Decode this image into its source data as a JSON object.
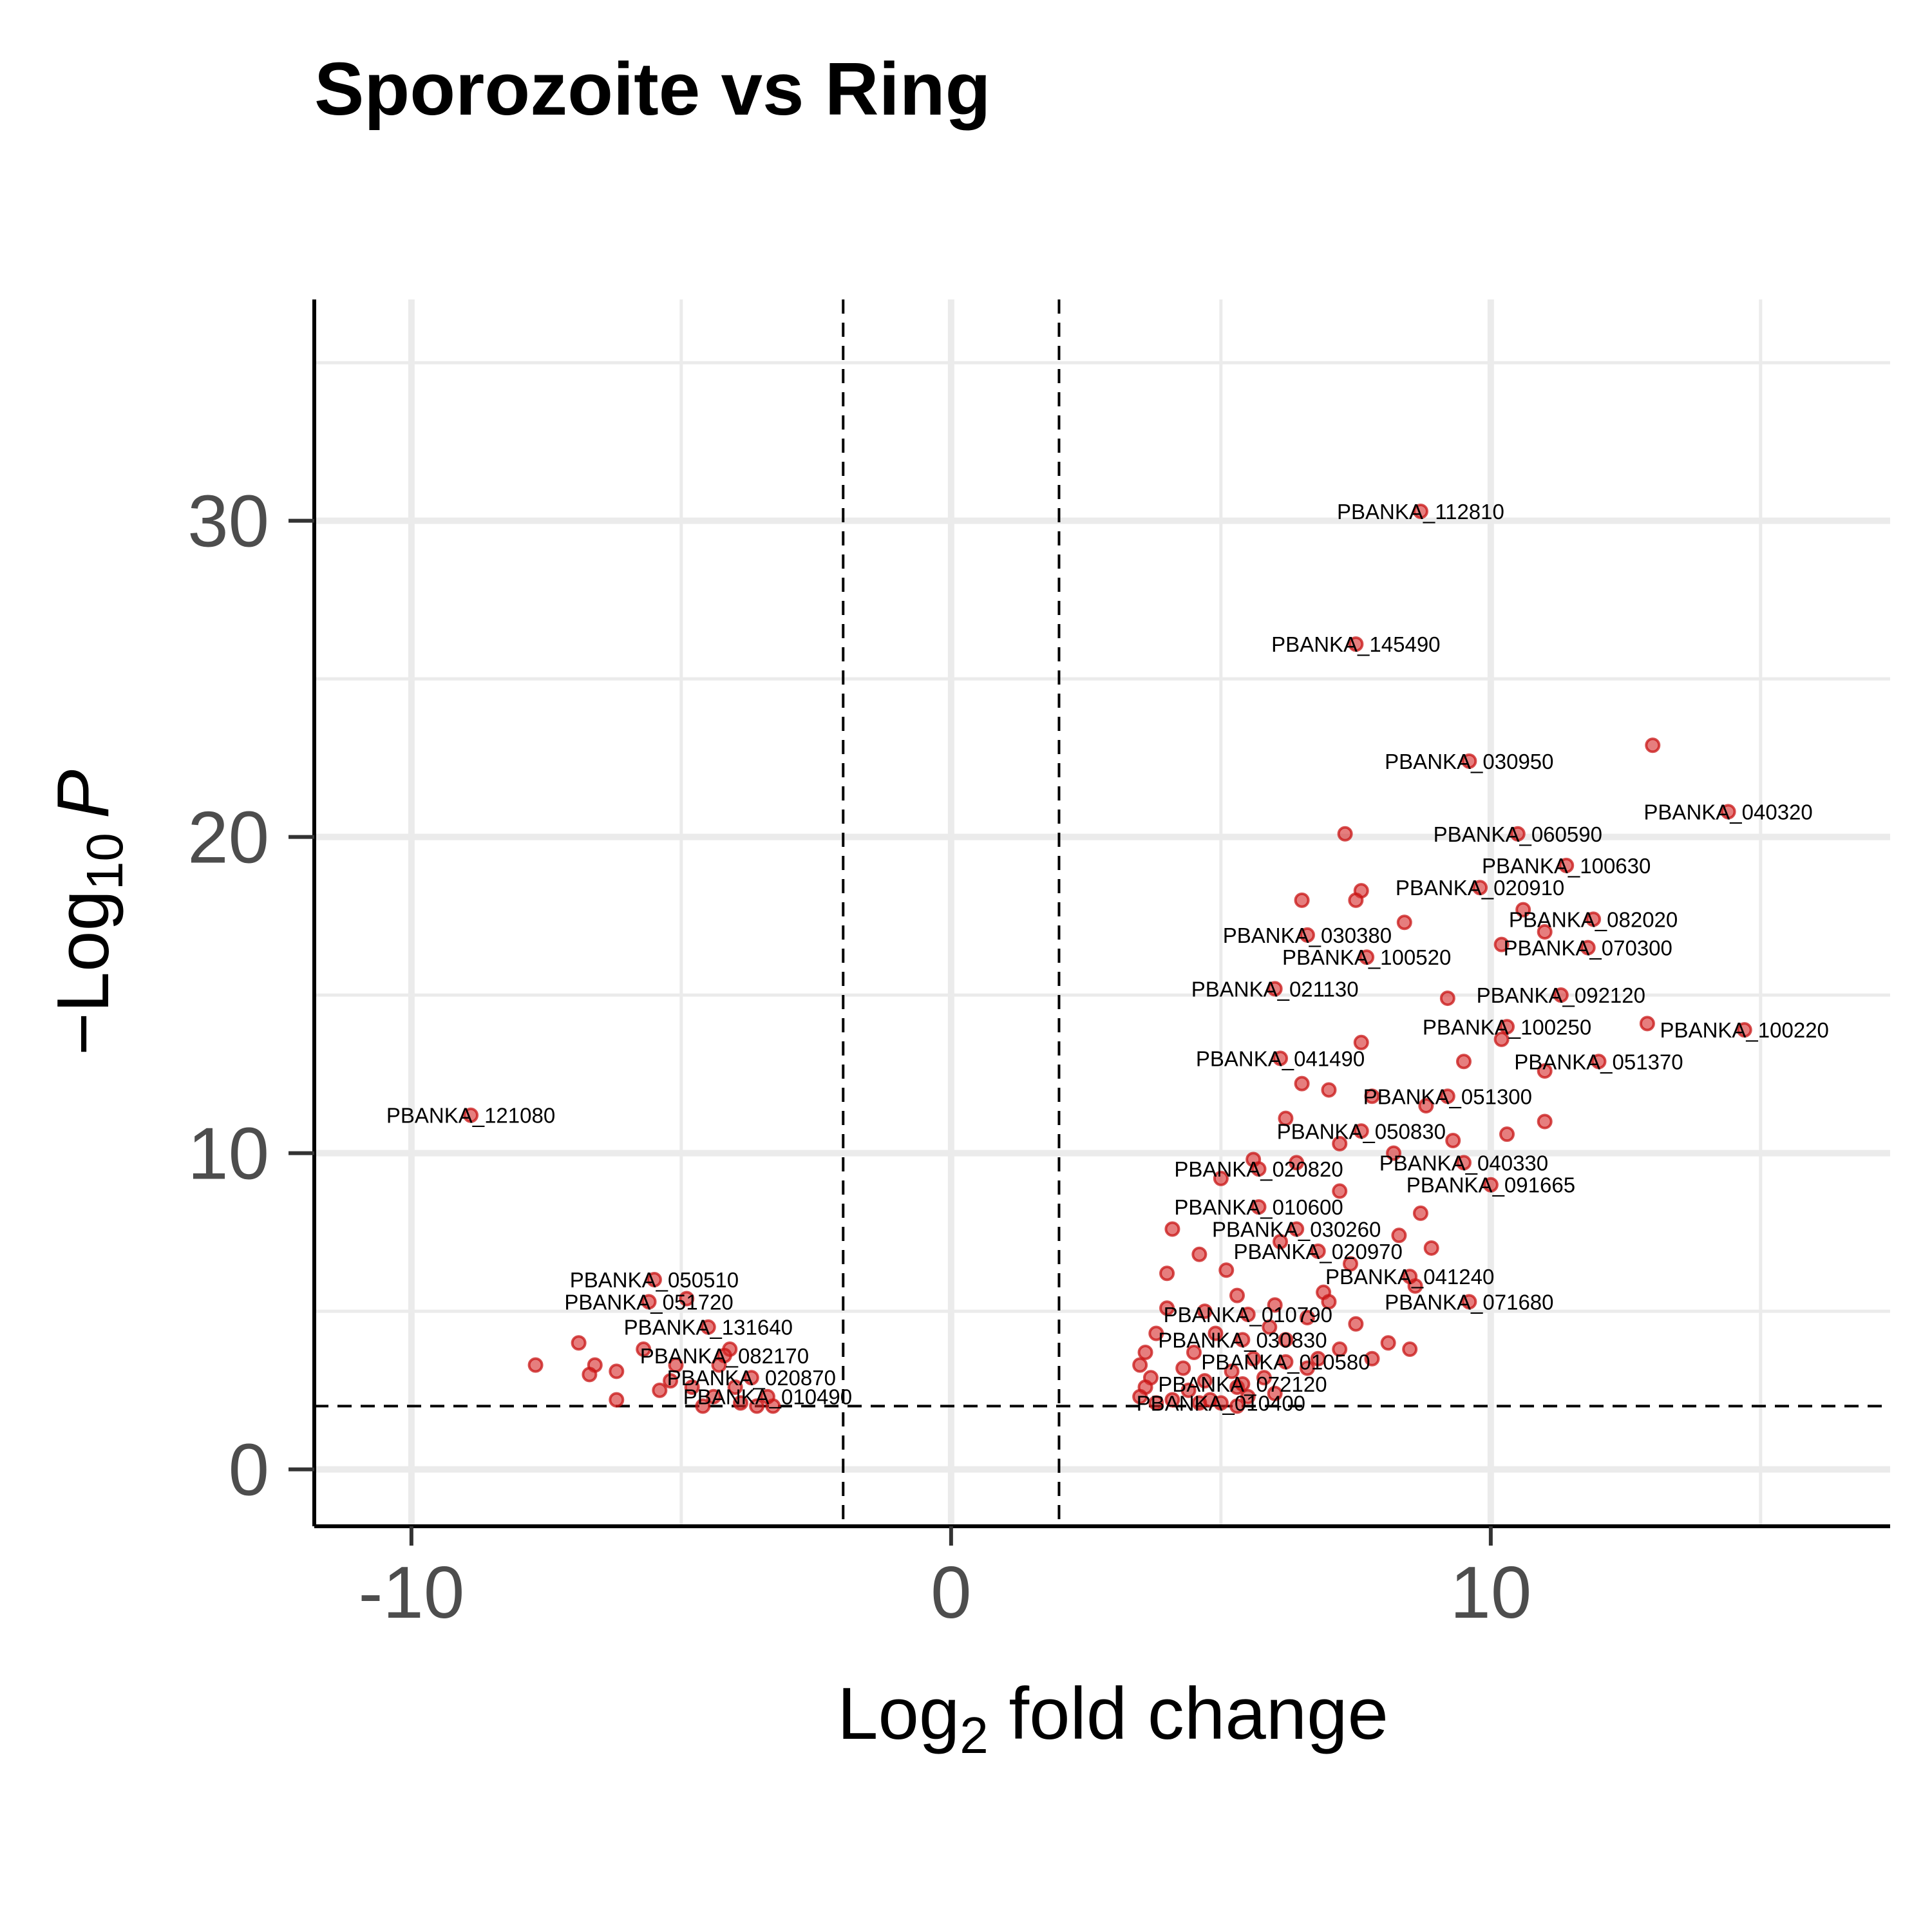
{
  "chart_data": {
    "type": "scatter",
    "title": "Sporozoite vs Ring",
    "xlabel": {
      "base": "Log",
      "sub": "2",
      "rest": " fold change"
    },
    "ylabel": {
      "pre": "−Log",
      "sub": "10",
      "italic": "P"
    },
    "xlim": [
      -11.8,
      17.4
    ],
    "ylim": [
      -1.8,
      37
    ],
    "xticks": [
      -10,
      0,
      10
    ],
    "xtick_labels": [
      "-10",
      "0",
      "10"
    ],
    "yticks": [
      0,
      10,
      20,
      30
    ],
    "ytick_labels": [
      "0",
      "10",
      "20",
      "30"
    ],
    "xminor": [
      -15,
      -5,
      5,
      15
    ],
    "yminor": [
      5,
      15,
      25,
      35
    ],
    "grid": true,
    "legend": "none",
    "colors": {
      "point": "#d62828",
      "grid": "#ebebeb"
    },
    "thresholds": {
      "log2fc": [
        -2,
        2
      ],
      "neg_log10_p": 2
    },
    "labeled_points": [
      {
        "x": 8.7,
        "y": 30.3,
        "label": "PBANKA_112810"
      },
      {
        "x": 7.5,
        "y": 26.1,
        "label": "PBANKA_145490"
      },
      {
        "x": 9.6,
        "y": 22.4,
        "label": "PBANKA_030950"
      },
      {
        "x": 14.4,
        "y": 20.8,
        "label": "PBANKA_040320"
      },
      {
        "x": 10.5,
        "y": 20.1,
        "label": "PBANKA_060590"
      },
      {
        "x": 11.4,
        "y": 19.1,
        "label": "PBANKA_100630"
      },
      {
        "x": 9.8,
        "y": 18.4,
        "label": "PBANKA_020910"
      },
      {
        "x": 11.9,
        "y": 17.4,
        "label": "PBANKA_082020"
      },
      {
        "x": 6.6,
        "y": 16.9,
        "label": "PBANKA_030380"
      },
      {
        "x": 11.8,
        "y": 16.5,
        "label": "PBANKA_070300"
      },
      {
        "x": 7.7,
        "y": 16.2,
        "label": "PBANKA_100520"
      },
      {
        "x": 6.0,
        "y": 15.2,
        "label": "PBANKA_021130"
      },
      {
        "x": 11.3,
        "y": 15.0,
        "label": "PBANKA_092120"
      },
      {
        "x": 10.3,
        "y": 14.0,
        "label": "PBANKA_100250"
      },
      {
        "x": 14.7,
        "y": 13.9,
        "label": "PBANKA_100220"
      },
      {
        "x": 6.1,
        "y": 13.0,
        "label": "PBANKA_041490"
      },
      {
        "x": 12.0,
        "y": 12.9,
        "label": "PBANKA_051370"
      },
      {
        "x": -8.9,
        "y": 11.2,
        "label": "PBANKA_121080"
      },
      {
        "x": 9.2,
        "y": 11.8,
        "label": "PBANKA_051300"
      },
      {
        "x": 7.6,
        "y": 10.7,
        "label": "PBANKA_050830"
      },
      {
        "x": 9.5,
        "y": 9.7,
        "label": "PBANKA_040330"
      },
      {
        "x": 5.7,
        "y": 9.5,
        "label": "PBANKA_020820"
      },
      {
        "x": 10.0,
        "y": 9.0,
        "label": "PBANKA_091665"
      },
      {
        "x": 5.7,
        "y": 8.3,
        "label": "PBANKA_010600"
      },
      {
        "x": 6.4,
        "y": 7.6,
        "label": "PBANKA_030260"
      },
      {
        "x": 6.8,
        "y": 6.9,
        "label": "PBANKA_020970"
      },
      {
        "x": 8.5,
        "y": 6.1,
        "label": "PBANKA_041240"
      },
      {
        "x": -5.5,
        "y": 6.0,
        "label": "PBANKA_050510"
      },
      {
        "x": -5.6,
        "y": 5.3,
        "label": "PBANKA_051720"
      },
      {
        "x": 9.6,
        "y": 5.3,
        "label": "PBANKA_071680"
      },
      {
        "x": 5.5,
        "y": 4.9,
        "label": "PBANKA_010790"
      },
      {
        "x": -4.5,
        "y": 4.5,
        "label": "PBANKA_131640"
      },
      {
        "x": 5.4,
        "y": 4.1,
        "label": "PBANKA_030830"
      },
      {
        "x": -4.2,
        "y": 3.6,
        "label": "PBANKA_082170"
      },
      {
        "x": 6.2,
        "y": 3.4,
        "label": "PBANKA_010580"
      },
      {
        "x": -3.7,
        "y": 2.9,
        "label": "PBANKA_020870"
      },
      {
        "x": 5.4,
        "y": 2.7,
        "label": "PBANKA_072120"
      },
      {
        "x": -3.4,
        "y": 2.3,
        "label": "PBANKA_010490"
      },
      {
        "x": 5.0,
        "y": 2.1,
        "label": "PBANKA_010400"
      }
    ],
    "other_points": [
      [
        13.0,
        22.9
      ],
      [
        7.3,
        20.1
      ],
      [
        6.5,
        18.0
      ],
      [
        7.6,
        18.3
      ],
      [
        7.5,
        18.0
      ],
      [
        8.4,
        17.3
      ],
      [
        10.6,
        17.7
      ],
      [
        11.0,
        17.0
      ],
      [
        10.2,
        16.6
      ],
      [
        9.2,
        14.9
      ],
      [
        12.9,
        14.1
      ],
      [
        10.2,
        13.6
      ],
      [
        9.5,
        12.9
      ],
      [
        11.0,
        12.6
      ],
      [
        7.6,
        13.5
      ],
      [
        6.5,
        12.2
      ],
      [
        7.0,
        12.0
      ],
      [
        7.8,
        11.8
      ],
      [
        8.8,
        11.5
      ],
      [
        10.3,
        10.6
      ],
      [
        11.0,
        11.0
      ],
      [
        6.2,
        11.1
      ],
      [
        7.2,
        10.3
      ],
      [
        8.2,
        10.0
      ],
      [
        9.3,
        10.4
      ],
      [
        5.6,
        9.8
      ],
      [
        6.4,
        9.7
      ],
      [
        5.0,
        9.2
      ],
      [
        7.2,
        8.8
      ],
      [
        8.7,
        8.1
      ],
      [
        4.1,
        7.6
      ],
      [
        6.1,
        7.2
      ],
      [
        8.3,
        7.4
      ],
      [
        8.9,
        7.0
      ],
      [
        4.6,
        6.8
      ],
      [
        5.1,
        6.3
      ],
      [
        7.4,
        6.5
      ],
      [
        4.0,
        6.2
      ],
      [
        6.9,
        5.6
      ],
      [
        8.6,
        5.8
      ],
      [
        5.3,
        5.5
      ],
      [
        7.0,
        5.3
      ],
      [
        6.0,
        5.2
      ],
      [
        4.0,
        5.1
      ],
      [
        4.7,
        5.0
      ],
      [
        6.6,
        4.8
      ],
      [
        7.5,
        4.6
      ],
      [
        5.9,
        4.5
      ],
      [
        3.8,
        4.3
      ],
      [
        4.9,
        4.3
      ],
      [
        6.2,
        4.1
      ],
      [
        7.2,
        3.8
      ],
      [
        8.1,
        4.0
      ],
      [
        3.6,
        3.7
      ],
      [
        4.5,
        3.7
      ],
      [
        5.6,
        3.5
      ],
      [
        6.8,
        3.5
      ],
      [
        7.8,
        3.5
      ],
      [
        8.5,
        3.8
      ],
      [
        3.5,
        3.3
      ],
      [
        4.3,
        3.2
      ],
      [
        5.2,
        3.1
      ],
      [
        6.6,
        3.2
      ],
      [
        3.7,
        2.9
      ],
      [
        4.7,
        2.8
      ],
      [
        5.8,
        2.9
      ],
      [
        3.6,
        2.6
      ],
      [
        4.4,
        2.5
      ],
      [
        5.3,
        2.6
      ],
      [
        3.5,
        2.3
      ],
      [
        4.1,
        2.2
      ],
      [
        4.8,
        2.2
      ],
      [
        5.5,
        2.3
      ],
      [
        6.0,
        2.4
      ],
      [
        3.8,
        2.1
      ],
      [
        4.6,
        2.1
      ],
      [
        5.3,
        2.0
      ],
      [
        -7.7,
        3.3
      ],
      [
        -6.9,
        4.0
      ],
      [
        -6.6,
        3.3
      ],
      [
        -6.7,
        3.0
      ],
      [
        -6.2,
        3.1
      ],
      [
        -5.7,
        3.8
      ],
      [
        -5.4,
        2.5
      ],
      [
        -6.2,
        2.2
      ],
      [
        -5.1,
        3.3
      ],
      [
        -4.9,
        5.4
      ],
      [
        -4.3,
        3.3
      ],
      [
        -4.8,
        2.6
      ],
      [
        -4.4,
        2.3
      ],
      [
        -4.0,
        2.6
      ],
      [
        -3.9,
        2.1
      ],
      [
        -4.6,
        2.0
      ],
      [
        -3.6,
        2.0
      ],
      [
        -3.3,
        2.0
      ],
      [
        -5.2,
        2.8
      ],
      [
        -4.1,
        3.8
      ]
    ]
  }
}
